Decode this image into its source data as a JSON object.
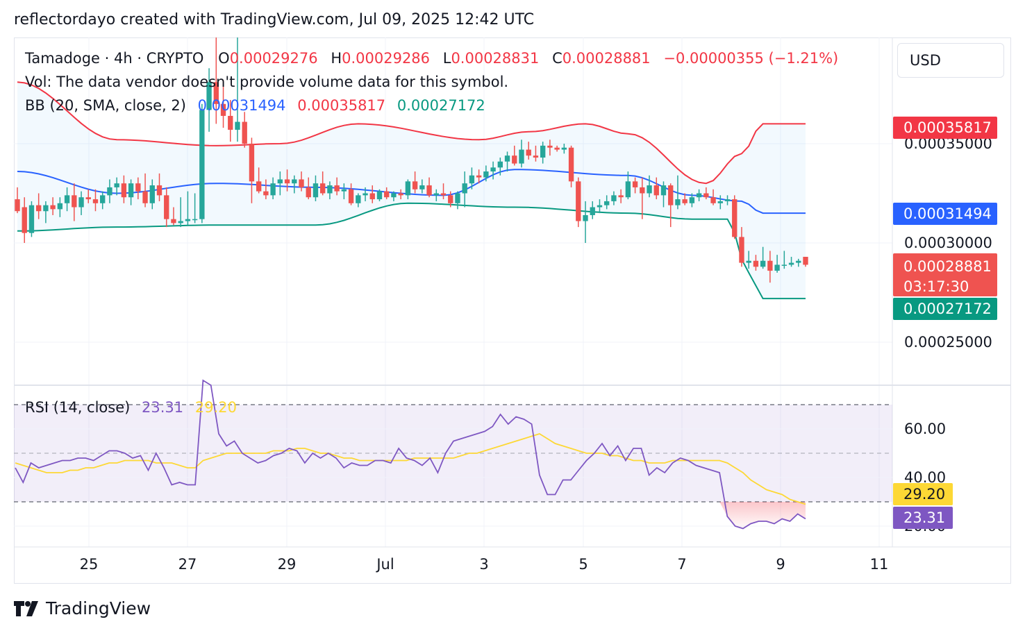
{
  "header": {
    "caption": "reflectordayo created with TradingView.com, Jul 09, 2025 12:42 UTC"
  },
  "legend": {
    "symbol": "Tamadoge · 4h · CRYPTO",
    "o_label": "O",
    "o_value": "0.00029276",
    "h_label": "H",
    "h_value": "0.00029286",
    "l_label": "L",
    "l_value": "0.00028831",
    "c_label": "C",
    "c_value": "0.00028881",
    "change": "−0.00000355 (−1.21%)",
    "vol_text": "Vol: The data vendor doesn't provide volume data for this symbol.",
    "bb_label": "BB (20, SMA, close, 2)",
    "bb_basis": "0.00031494",
    "bb_upper": "0.00035817",
    "bb_lower": "0.00027172",
    "rsi_label": "RSI (14, close)",
    "rsi_value": "23.31",
    "rsi_ma": "29.20"
  },
  "currency": "USD",
  "price_axis": [
    "0.00035000",
    "0.00030000",
    "0.00025000"
  ],
  "price_tags": {
    "upper": "0.00035817",
    "basis": "0.00031494",
    "close": "0.00028881",
    "countdown": "03:17:30",
    "lower": "0.00027172"
  },
  "rsi_axis": [
    "60.00",
    "40.00",
    "20.00"
  ],
  "rsi_tags": {
    "ma": "29.20",
    "rsi": "23.31"
  },
  "x_labels": [
    "25",
    "27",
    "29",
    "Jul",
    "3",
    "5",
    "7",
    "9",
    "11"
  ],
  "footer": {
    "brand": "TradingView"
  },
  "colors": {
    "up": "#26a69a",
    "down": "#ef5350",
    "bb_upper": "#f23645",
    "bb_basis": "#2962ff",
    "bb_lower": "#089981",
    "rsi": "#7e57c2",
    "rsi_ma": "#fdd835",
    "text": "#131722"
  },
  "chart_data": [
    {
      "type": "candlestick",
      "title": "Tamadoge · 4h · CRYPTO",
      "x_start": "Jun 23, 2025 16:00",
      "x_end": "Jul 09, 2025 12:00",
      "interval": "4h",
      "ylim": [
        0.000225,
        0.000405
      ],
      "xticks": [
        "25",
        "27",
        "29",
        "Jul",
        "3",
        "5",
        "7",
        "9",
        "11"
      ],
      "ohlc": [
        [
          0.000322,
          0.000328,
          0.000315,
          0.000316
        ],
        [
          0.000318,
          0.000323,
          0.0003,
          0.000305
        ],
        [
          0.000305,
          0.000321,
          0.000303,
          0.000319
        ],
        [
          0.000319,
          0.000325,
          0.000312,
          0.000316
        ],
        [
          0.000316,
          0.000321,
          0.00031,
          0.000319
        ],
        [
          0.000319,
          0.000323,
          0.000314,
          0.000317
        ],
        [
          0.000317,
          0.000323,
          0.000313,
          0.00032
        ],
        [
          0.00032,
          0.000328,
          0.000316,
          0.000324
        ],
        [
          0.000324,
          0.00033,
          0.000311,
          0.000318
        ],
        [
          0.000318,
          0.000326,
          0.000314,
          0.000323
        ],
        [
          0.000323,
          0.000327,
          0.00032,
          0.000322
        ],
        [
          0.000322,
          0.000327,
          0.000316,
          0.00032
        ],
        [
          0.00032,
          0.000326,
          0.000317,
          0.000324
        ],
        [
          0.000324,
          0.000332,
          0.00032,
          0.000328
        ],
        [
          0.000328,
          0.000333,
          0.000324,
          0.00033
        ],
        [
          0.00033,
          0.000334,
          0.00032,
          0.000323
        ],
        [
          0.000323,
          0.000332,
          0.000319,
          0.00033
        ],
        [
          0.00033,
          0.000333,
          0.000322,
          0.000326
        ],
        [
          0.000326,
          0.000335,
          0.000318,
          0.00032
        ],
        [
          0.00032,
          0.000332,
          0.000317,
          0.000329
        ],
        [
          0.000329,
          0.000335,
          0.000321,
          0.000324
        ],
        [
          0.000324,
          0.000328,
          0.000308,
          0.000312
        ],
        [
          0.000312,
          0.000318,
          0.000309,
          0.00031
        ],
        [
          0.00031,
          0.000323,
          0.000308,
          0.000311
        ],
        [
          0.000311,
          0.000326,
          0.000309,
          0.000312
        ],
        [
          0.000312,
          0.000325,
          0.00031,
          0.000312
        ],
        [
          0.000312,
          0.00037,
          0.00031,
          0.000367
        ],
        [
          0.000367,
          0.000388,
          0.000356,
          0.000381
        ],
        [
          0.000381,
          0.000405,
          0.00036,
          0.00037
        ],
        [
          0.00037,
          0.000382,
          0.000358,
          0.000364
        ],
        [
          0.000364,
          0.000372,
          0.000351,
          0.000357
        ],
        [
          0.000357,
          0.000405,
          0.000351,
          0.000361
        ],
        [
          0.000361,
          0.000366,
          0.000348,
          0.00035
        ],
        [
          0.00035,
          0.000353,
          0.00032,
          0.000331
        ],
        [
          0.000331,
          0.000338,
          0.000325,
          0.000326
        ],
        [
          0.000326,
          0.000332,
          0.000322,
          0.000324
        ],
        [
          0.000324,
          0.000333,
          0.000322,
          0.00033
        ],
        [
          0.00033,
          0.000336,
          0.000324,
          0.000332
        ],
        [
          0.000332,
          0.000337,
          0.000326,
          0.00033
        ],
        [
          0.00033,
          0.000334,
          0.000325,
          0.000332
        ],
        [
          0.000332,
          0.000336,
          0.000326,
          0.000328
        ],
        [
          0.000328,
          0.000333,
          0.000322,
          0.000323
        ],
        [
          0.000323,
          0.000334,
          0.000321,
          0.00033
        ],
        [
          0.00033,
          0.000336,
          0.000324,
          0.000325
        ],
        [
          0.000325,
          0.000331,
          0.000322,
          0.000329
        ],
        [
          0.000329,
          0.000333,
          0.000324,
          0.000326
        ],
        [
          0.000326,
          0.00033,
          0.000322,
          0.000327
        ],
        [
          0.000327,
          0.00033,
          0.000319,
          0.00032
        ],
        [
          0.00032,
          0.000325,
          0.000318,
          0.000324
        ],
        [
          0.000324,
          0.000328,
          0.000321,
          0.000325
        ],
        [
          0.000325,
          0.000329,
          0.00032,
          0.000322
        ],
        [
          0.000322,
          0.000327,
          0.000321,
          0.000326
        ],
        [
          0.000326,
          0.000328,
          0.000322,
          0.000323
        ],
        [
          0.000323,
          0.000326,
          0.000321,
          0.000325
        ],
        [
          0.000325,
          0.000327,
          0.000322,
          0.000324
        ],
        [
          0.000324,
          0.000332,
          0.000322,
          0.000331
        ],
        [
          0.000331,
          0.000336,
          0.000325,
          0.000327
        ],
        [
          0.000327,
          0.000332,
          0.000325,
          0.000329
        ],
        [
          0.000329,
          0.000333,
          0.000323,
          0.000324
        ],
        [
          0.000324,
          0.000327,
          0.000321,
          0.000325
        ],
        [
          0.000325,
          0.00033,
          0.000322,
          0.000324
        ],
        [
          0.000324,
          0.000326,
          0.000318,
          0.00032
        ],
        [
          0.00032,
          0.000326,
          0.000317,
          0.000325
        ],
        [
          0.000325,
          0.000336,
          0.000318,
          0.00033
        ],
        [
          0.00033,
          0.000338,
          0.000327,
          0.000334
        ],
        [
          0.000334,
          0.000337,
          0.00033,
          0.000333
        ],
        [
          0.000333,
          0.000339,
          0.000331,
          0.000336
        ],
        [
          0.000336,
          0.000341,
          0.000332,
          0.000338
        ],
        [
          0.000338,
          0.000343,
          0.000334,
          0.000341
        ],
        [
          0.000341,
          0.000346,
          0.000336,
          0.000344
        ],
        [
          0.000344,
          0.000349,
          0.000339,
          0.00034
        ],
        [
          0.00034,
          0.000352,
          0.000338,
          0.000347
        ],
        [
          0.000347,
          0.000351,
          0.000342,
          0.000344
        ],
        [
          0.000344,
          0.000349,
          0.000341,
          0.000343
        ],
        [
          0.000343,
          0.000351,
          0.00034,
          0.000349
        ],
        [
          0.000349,
          0.000352,
          0.000344,
          0.000348
        ],
        [
          0.000348,
          0.000349,
          0.000346,
          0.000347
        ],
        [
          0.000347,
          0.00035,
          0.000345,
          0.000348
        ],
        [
          0.000348,
          0.000349,
          0.000328,
          0.000331
        ],
        [
          0.000331,
          0.000333,
          0.000308,
          0.000311
        ],
        [
          0.000311,
          0.000321,
          0.0003,
          0.000314
        ],
        [
          0.000314,
          0.000321,
          0.000312,
          0.000318
        ],
        [
          0.000318,
          0.000322,
          0.000315,
          0.000319
        ],
        [
          0.000319,
          0.000324,
          0.000317,
          0.000321
        ],
        [
          0.000321,
          0.000326,
          0.000319,
          0.000324
        ],
        [
          0.000324,
          0.000327,
          0.00032,
          0.000323
        ],
        [
          0.000323,
          0.000336,
          0.000322,
          0.000331
        ],
        [
          0.000331,
          0.000333,
          0.000325,
          0.000328
        ],
        [
          0.000328,
          0.000333,
          0.000312,
          0.000325
        ],
        [
          0.000325,
          0.000334,
          0.000323,
          0.000329
        ],
        [
          0.000329,
          0.000333,
          0.000322,
          0.000324
        ],
        [
          0.000324,
          0.000331,
          0.000318,
          0.000329
        ],
        [
          0.000329,
          0.00033,
          0.000308,
          0.000319
        ],
        [
          0.000319,
          0.000334,
          0.000317,
          0.000322
        ],
        [
          0.000322,
          0.000325,
          0.000319,
          0.00032
        ],
        [
          0.00032,
          0.000325,
          0.000318,
          0.000323
        ],
        [
          0.000323,
          0.000327,
          0.000321,
          0.000325
        ],
        [
          0.000325,
          0.000328,
          0.000322,
          0.000323
        ],
        [
          0.000323,
          0.000327,
          0.000319,
          0.00032
        ],
        [
          0.00032,
          0.000324,
          0.000317,
          0.000321
        ],
        [
          0.000321,
          0.000324,
          0.000319,
          0.000322
        ],
        [
          0.000322,
          0.000324,
          0.000302,
          0.000303
        ],
        [
          0.000303,
          0.000308,
          0.000288,
          0.00029
        ],
        [
          0.00029,
          0.000296,
          0.000287,
          0.000291
        ],
        [
          0.000291,
          0.000294,
          0.000286,
          0.000288
        ],
        [
          0.000288,
          0.000298,
          0.000287,
          0.000291
        ],
        [
          0.000291,
          0.000296,
          0.00028,
          0.000286
        ],
        [
          0.000286,
          0.000294,
          0.000285,
          0.000289
        ],
        [
          0.000289,
          0.000296,
          0.000287,
          0.000289
        ],
        [
          0.000289,
          0.000293,
          0.000288,
          0.00029
        ],
        [
          0.00029,
          0.000292,
          0.000288,
          0.000291
        ],
        [
          0.000293,
          0.000293,
          0.000288,
          0.000289
        ]
      ],
      "bollinger": {
        "label": "BB (20, SMA, close, 2)",
        "basis_last": 0.00031494,
        "upper_last": 0.00035817,
        "lower_last": 0.00027172,
        "upper_keypoints": [
          [
            0,
            0.000381
          ],
          [
            14,
            0.000352
          ],
          [
            28,
            0.000349
          ],
          [
            37,
            0.00035
          ],
          [
            48,
            0.00036
          ],
          [
            65,
            0.000352
          ],
          [
            72,
            0.000356
          ],
          [
            80,
            0.00036
          ],
          [
            86,
            0.000355
          ],
          [
            97,
            0.00033
          ],
          [
            102,
            0.000345
          ],
          [
            105,
            0.00036
          ]
        ],
        "basis_keypoints": [
          [
            0,
            0.000336
          ],
          [
            14,
            0.000325
          ],
          [
            28,
            0.00033
          ],
          [
            42,
            0.000328
          ],
          [
            60,
            0.000324
          ],
          [
            70,
            0.000337
          ],
          [
            86,
            0.000334
          ],
          [
            95,
            0.000324
          ],
          [
            102,
            0.000321
          ],
          [
            105,
            0.000315
          ]
        ],
        "lower_keypoints": [
          [
            0,
            0.000306
          ],
          [
            14,
            0.000308
          ],
          [
            28,
            0.000309
          ],
          [
            42,
            0.000309
          ],
          [
            55,
            0.00032
          ],
          [
            70,
            0.000318
          ],
          [
            86,
            0.000315
          ],
          [
            95,
            0.000312
          ],
          [
            100,
            0.000312
          ],
          [
            103,
            0.000285
          ],
          [
            105,
            0.000272
          ]
        ]
      }
    },
    {
      "type": "line",
      "title": "RSI (14, close)",
      "ylim": [
        13,
        74
      ],
      "bands": {
        "upper": 70,
        "middle": 50,
        "lower": 30
      },
      "series": [
        {
          "name": "RSI (14, close)",
          "values": [
            44,
            38,
            46,
            44,
            45,
            46,
            47,
            47,
            48,
            48,
            47,
            49,
            51,
            51,
            50,
            48,
            49,
            43,
            50,
            44,
            37,
            38,
            37,
            37,
            80,
            78,
            58,
            53,
            55,
            50,
            48,
            46,
            47,
            49,
            50,
            52,
            51,
            46,
            50,
            48,
            50,
            48,
            44,
            46,
            45,
            45,
            47,
            47,
            46,
            52,
            48,
            47,
            45,
            48,
            42,
            50,
            55,
            56,
            57,
            58,
            59,
            61,
            66,
            62,
            65,
            64,
            62,
            41,
            33,
            33,
            39,
            39,
            43,
            47,
            50,
            54,
            49,
            53,
            47,
            52,
            52,
            41,
            44,
            42,
            46,
            48,
            47,
            45,
            44,
            43,
            42,
            24,
            20,
            19,
            21,
            22,
            22,
            21,
            23,
            22,
            25,
            23
          ]
        },
        {
          "name": "RSI-based MA",
          "values": [
            46,
            45,
            44,
            43,
            42,
            42,
            42,
            43,
            43,
            44,
            44,
            45,
            46,
            46,
            47,
            47,
            47,
            47,
            46,
            46,
            46,
            45,
            44,
            44,
            47,
            48,
            49,
            50,
            50,
            50,
            50,
            50,
            50,
            51,
            51,
            51,
            52,
            52,
            51,
            50,
            50,
            49,
            48,
            48,
            47,
            47,
            47,
            47,
            47,
            47,
            47,
            48,
            48,
            48,
            48,
            48,
            48,
            49,
            50,
            50,
            51,
            52,
            53,
            54,
            55,
            56,
            57,
            58,
            56,
            54,
            53,
            52,
            51,
            50,
            50,
            50,
            49,
            49,
            48,
            47,
            47,
            46,
            46,
            46,
            47,
            47,
            47,
            47,
            47,
            47,
            47,
            46,
            44,
            42,
            39,
            37,
            35,
            34,
            33,
            31,
            30,
            29
          ]
        }
      ]
    }
  ]
}
